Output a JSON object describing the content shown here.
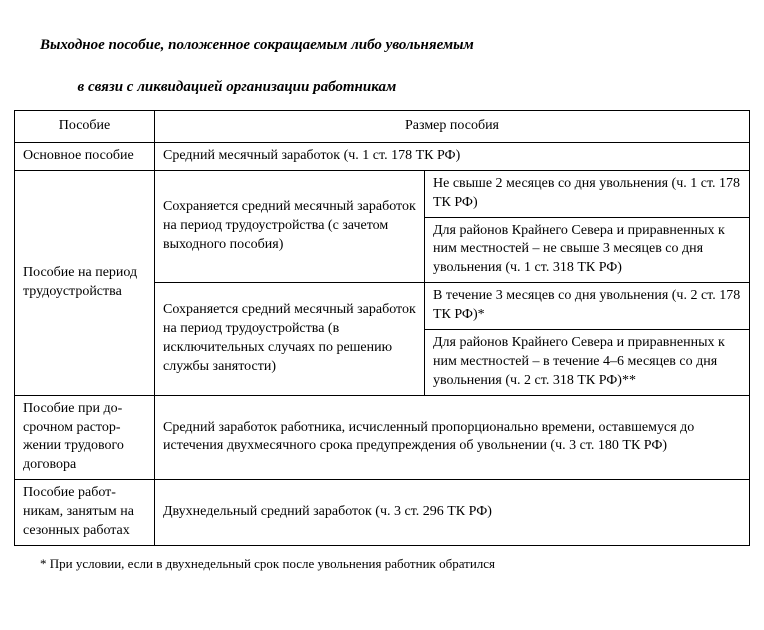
{
  "title_line1": "Выходное пособие, положенное сокращаемым либо увольняемым",
  "title_line2": "в связи с ликвидацией организации работникам",
  "table": {
    "header_benefit": "Пособие",
    "header_amount": "Размер пособия",
    "row1_label": "Основное пособие",
    "row1_value": "Средний месячный заработок (ч. 1 ст. 178 ТК РФ)",
    "row2_label": "Пособие на период трудоустройства",
    "row2_block1": "Сохраняется средний месячный заработок на период трудоустройства (с зачетом выходного пособия)",
    "row2_block1_right1": "Не свыше 2 месяцев со дня увольнения (ч. 1 ст. 178 ТК РФ)",
    "row2_block1_right2": "Для районов Крайнего Севера и приравненных к ним местнос­тей – не свыше 3 месяцев со дня увольнения (ч. 1 ст. 318 ТК РФ)",
    "row2_block2": "Сохраняется средний месячный заработок на период трудоус­тройства (в исключительных случаях по решению службы занятости)",
    "row2_block2_right1": "В течение 3 месяцев со дня увольнения (ч. 2 ст. 178 ТК РФ)*",
    "row2_block2_right2": "Для районов Крайнего Севера и при­равненных к ним местностей – в те­чение 4–6 месяцев со дня увольнения (ч. 2 ст. 318 ТК РФ)**",
    "row3_label": "Пособие при до­срочном растор­жении трудового договора",
    "row3_value": "Средний заработок работника, исчисленный пропорционально време­ни, оставшемуся до истечения двухмесячного срока предупреждения об увольнении (ч. 3 ст. 180 ТК РФ)",
    "row4_label": "Пособие работ­никам, занятым на сезонных работах",
    "row4_value": "Двухнедельный средний заработок (ч. 3 ст. 296 ТК РФ)"
  },
  "footnote": "* При условии, если в двухнедельный срок после увольнения работник обратился"
}
